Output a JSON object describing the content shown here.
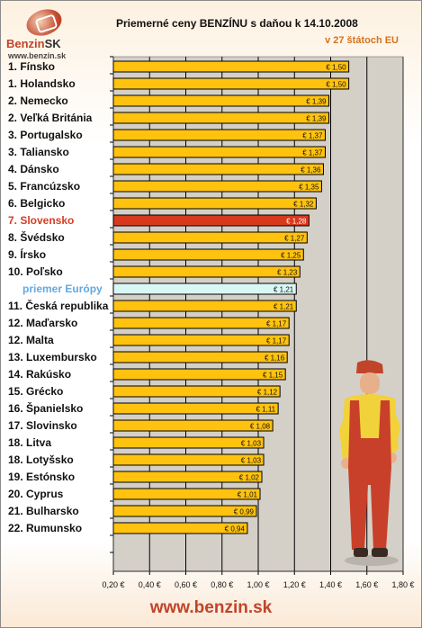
{
  "logo": {
    "brand": "Benzin",
    "brand_suffix": "SK",
    "url": "www.benzin.sk"
  },
  "chart_data": {
    "type": "bar",
    "orientation": "horizontal",
    "title": "Priemerné ceny BENZÍNU s daňou k 14.10.2008",
    "subtitle": "v 27 štátoch EU",
    "categories": [
      "1. Fínsko",
      "1. Holandsko",
      "2. Nemecko",
      "2. Veľká Británia",
      "3. Portugalsko",
      "3. Taliansko",
      "4. Dánsko",
      "5. Francúzsko",
      "6. Belgicko",
      "7. Slovensko",
      "8. Švédsko",
      "9. Írsko",
      "10. Poľsko",
      "priemer Európy",
      "11. Česká republika",
      "12. Maďarsko",
      "12. Malta",
      "13. Luxembursko",
      "14. Rakúsko",
      "15. Grécko",
      "16. Španielsko",
      "17. Slovinsko",
      "18. Litva",
      "18. Lotyšsko",
      "19. Estónsko",
      "20. Cyprus",
      "21. Bulharsko",
      "22. Rumunsko"
    ],
    "values": [
      1.5,
      1.5,
      1.39,
      1.39,
      1.37,
      1.37,
      1.36,
      1.35,
      1.32,
      1.28,
      1.27,
      1.25,
      1.23,
      1.21,
      1.21,
      1.17,
      1.17,
      1.16,
      1.15,
      1.12,
      1.11,
      1.08,
      1.03,
      1.03,
      1.02,
      1.01,
      0.99,
      0.94
    ],
    "value_labels": [
      "€ 1,50",
      "€ 1,50",
      "€ 1,39",
      "€ 1,39",
      "€ 1,37",
      "€ 1,37",
      "€ 1,36",
      "€ 1,35",
      "€ 1,32",
      "€ 1,28",
      "€ 1,27",
      "€ 1,25",
      "€ 1,23",
      "€ 1,21",
      "€ 1,21",
      "€ 1,17",
      "€ 1,17",
      "€ 1,16",
      "€ 1,15",
      "€ 1,12",
      "€ 1,11",
      "€ 1,08",
      "€ 1,03",
      "€ 1,03",
      "€ 1,02",
      "€ 1,01",
      "€ 0,99",
      "€ 0,94"
    ],
    "highlight_index": 9,
    "average_index": 13,
    "xlim": [
      0.2,
      1.8
    ],
    "x_ticks": [
      0.2,
      0.4,
      0.6,
      0.8,
      1.0,
      1.2,
      1.4,
      1.6,
      1.8
    ],
    "x_tick_labels": [
      "0,20 €",
      "0,40 €",
      "0,60 €",
      "0,80 €",
      "1,00 €",
      "1,20 €",
      "1,40 €",
      "1,60 €",
      "1,80 €"
    ],
    "grid": true,
    "colors": {
      "bar": "#ffc20e",
      "highlight": "#d8391c",
      "average": "#d9f7f4",
      "plot_bg": "#d4d0c8",
      "grid": "#000000"
    }
  },
  "footer": {
    "url": "www.benzin.sk"
  }
}
